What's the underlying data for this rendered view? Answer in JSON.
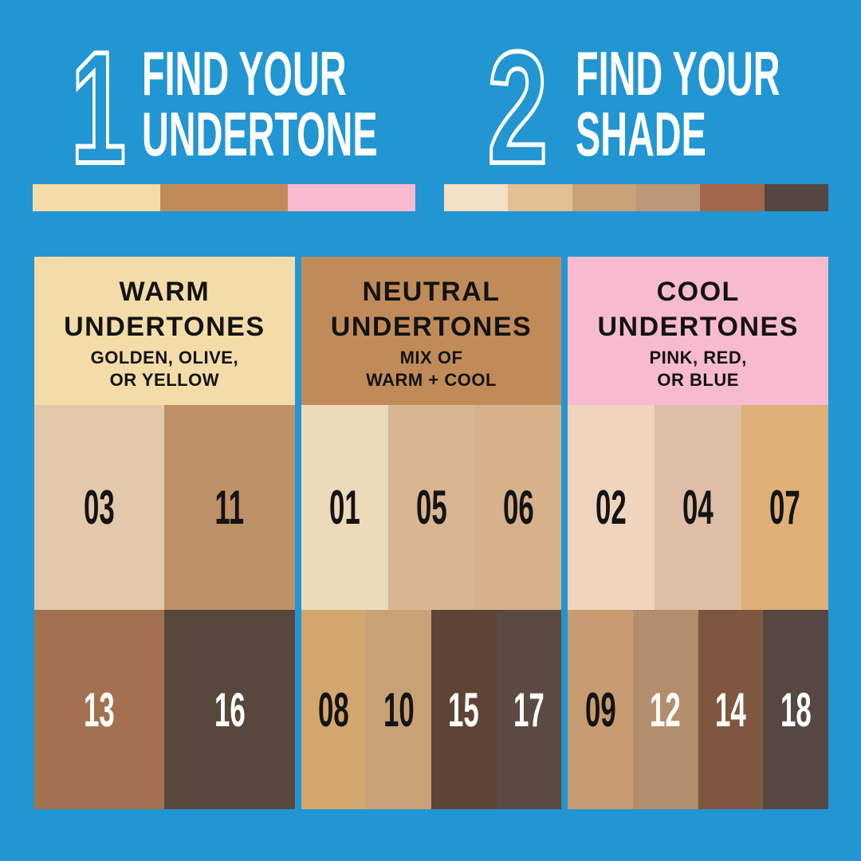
{
  "canvas": {
    "background": "#2196d3"
  },
  "steps": [
    {
      "number": "1",
      "line1": "FIND YOUR",
      "line2": "UNDERTONE"
    },
    {
      "number": "2",
      "line1": "FIND YOUR",
      "line2": "SHADE"
    }
  ],
  "undertone_strip": {
    "colors": [
      "#f4dca8",
      "#c18b59",
      "#f8bacf"
    ]
  },
  "shade_strip": {
    "colors": [
      "#f4e0c7",
      "#e2bf94",
      "#c9a078",
      "#bd9878",
      "#a0674b",
      "#554641"
    ]
  },
  "columns": [
    {
      "key": "warm",
      "header_bg": "#f4dca8",
      "title1": "WARM",
      "title2": "UNDERTONES",
      "sub1": "GOLDEN, OLIVE,",
      "sub2": "OR YELLOW",
      "row1": [
        {
          "label": "03",
          "bg": "#e4c8ab",
          "fg": "#141414"
        },
        {
          "label": "11",
          "bg": "#bf9168",
          "fg": "#141414"
        }
      ],
      "row2": [
        {
          "label": "13",
          "bg": "#a37150",
          "fg": "#ffffff"
        },
        {
          "label": "16",
          "bg": "#57473c",
          "fg": "#ffffff"
        }
      ]
    },
    {
      "key": "neutral",
      "header_bg": "#c18b59",
      "title1": "NEUTRAL",
      "title2": "UNDERTONES",
      "sub1": "MIX OF",
      "sub2": "WARM + COOL",
      "row1": [
        {
          "label": "01",
          "bg": "#eddaba",
          "fg": "#141414"
        },
        {
          "label": "05",
          "bg": "#d9b592",
          "fg": "#141414"
        },
        {
          "label": "06",
          "bg": "#d6b18a",
          "fg": "#141414"
        }
      ],
      "row2": [
        {
          "label": "08",
          "bg": "#d3a66f",
          "fg": "#141414"
        },
        {
          "label": "10",
          "bg": "#c9a176",
          "fg": "#141414"
        },
        {
          "label": "15",
          "bg": "#5d4435",
          "fg": "#ffffff"
        },
        {
          "label": "17",
          "bg": "#5a4a41",
          "fg": "#ffffff"
        }
      ]
    },
    {
      "key": "cool",
      "header_bg": "#f8bacf",
      "title1": "COOL",
      "title2": "UNDERTONES",
      "sub1": "PINK, RED,",
      "sub2": "OR BLUE",
      "row1": [
        {
          "label": "02",
          "bg": "#f0d4bd",
          "fg": "#141414"
        },
        {
          "label": "04",
          "bg": "#debea6",
          "fg": "#141414"
        },
        {
          "label": "07",
          "bg": "#dfb077",
          "fg": "#141414"
        }
      ],
      "row2": [
        {
          "label": "09",
          "bg": "#c89b73",
          "fg": "#141414"
        },
        {
          "label": "12",
          "bg": "#b38e6d",
          "fg": "#ffffff"
        },
        {
          "label": "14",
          "bg": "#7f5741",
          "fg": "#ffffff"
        },
        {
          "label": "18",
          "bg": "#564742",
          "fg": "#ffffff"
        }
      ]
    }
  ]
}
